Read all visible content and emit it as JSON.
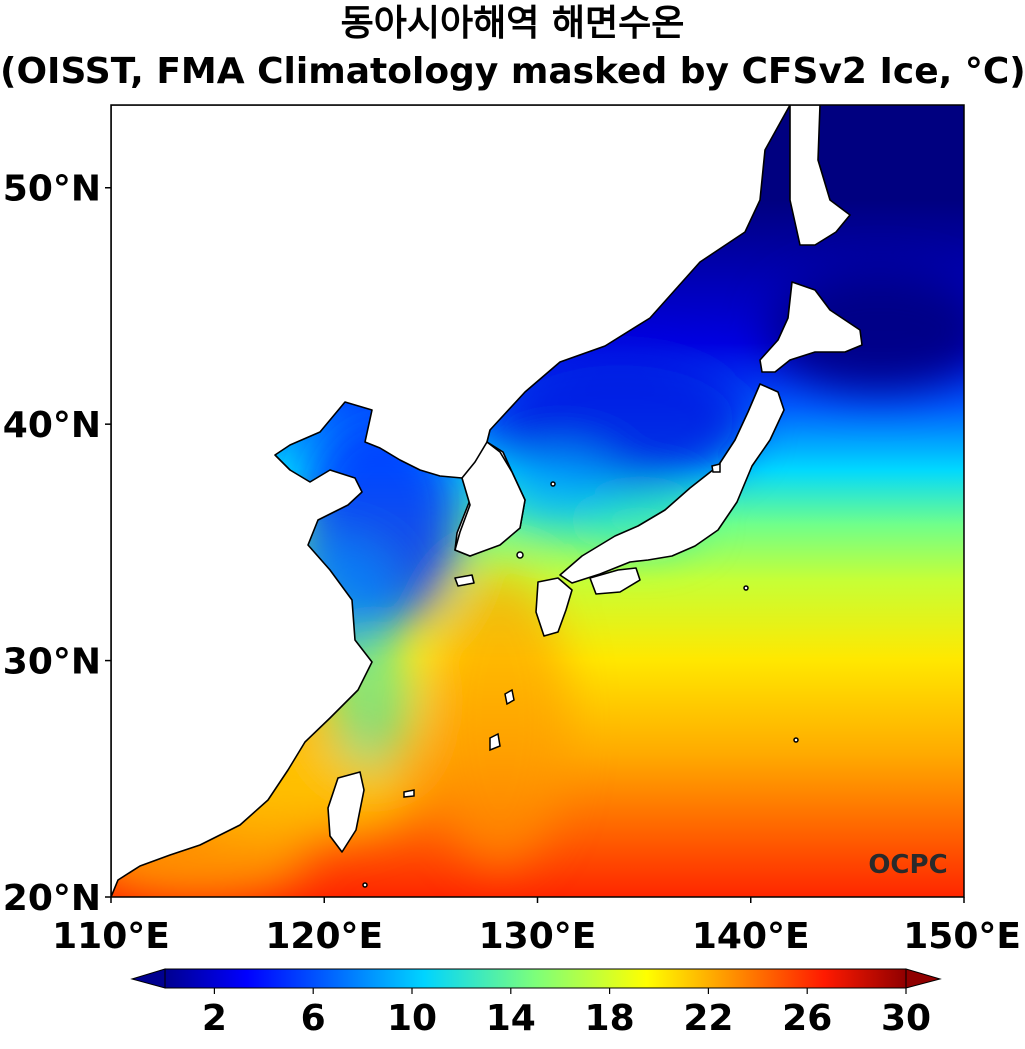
{
  "title": {
    "line1": "동아시아해역 해면수온",
    "line2": "(OISST, FMA Climatology masked by CFSv2 Ice, °C)"
  },
  "map": {
    "lon_range": [
      110,
      150
    ],
    "lat_range": [
      20,
      53.5
    ],
    "x_ticks": [
      {
        "value": 110,
        "label": "110°E"
      },
      {
        "value": 120,
        "label": "120°E"
      },
      {
        "value": 130,
        "label": "130°E"
      },
      {
        "value": 140,
        "label": "140°E"
      },
      {
        "value": 150,
        "label": "150°E"
      }
    ],
    "y_ticks": [
      {
        "value": 20,
        "label": "20°N"
      },
      {
        "value": 30,
        "label": "30°N"
      },
      {
        "value": 40,
        "label": "40°N"
      },
      {
        "value": 50,
        "label": "50°N"
      }
    ],
    "logo_text": "OCPC",
    "land_color": "#ffffff",
    "coast_color": "#000000"
  },
  "colorbar": {
    "min": 0,
    "max": 30,
    "tick_values": [
      2,
      6,
      10,
      14,
      18,
      22,
      26,
      30
    ],
    "tick_labels": [
      "2",
      "6",
      "10",
      "14",
      "18",
      "22",
      "26",
      "30"
    ],
    "extend": "both",
    "colormap": "jet",
    "colors": [
      "#000080",
      "#0000ff",
      "#0080ff",
      "#00e5ff",
      "#80ff80",
      "#ffff00",
      "#ff8000",
      "#ff1a00",
      "#800000"
    ]
  }
}
